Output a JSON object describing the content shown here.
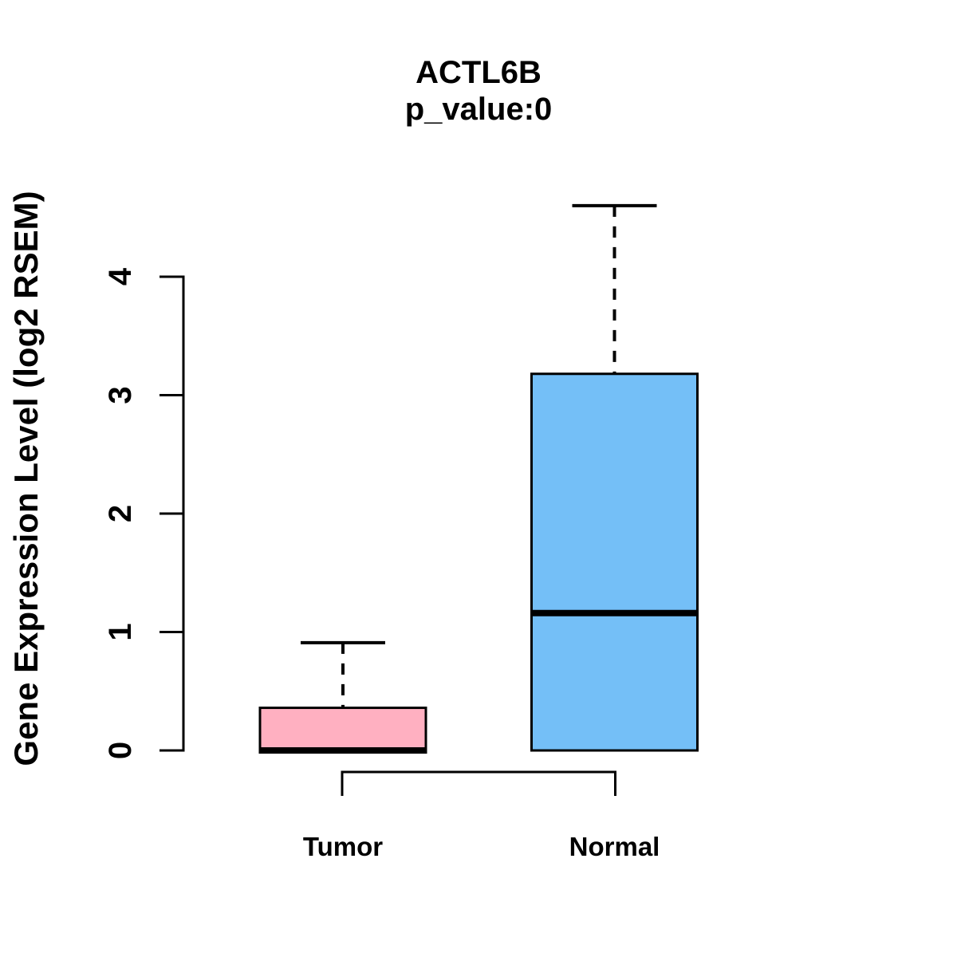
{
  "page": {
    "background_color": "#FFFFFF",
    "text_color": "#000000"
  },
  "chart_data": {
    "type": "boxplot",
    "title": "ACTL6B",
    "subtitle": "p_value:0",
    "ylabel": "Gene Expression Level (log2 RSEM)",
    "xlabel": "",
    "categories": [
      "Tumor",
      "Normal"
    ],
    "yticks": [
      0,
      1,
      2,
      3,
      4
    ],
    "ylim": [
      -0.25,
      4.75
    ],
    "grid": false,
    "legend": "none",
    "axis_color": "#000000",
    "series": [
      {
        "name": "Tumor",
        "fill_color": "#FFB0C1",
        "whisker_low": 0,
        "q1": 0,
        "median": 0,
        "q3": 0.36,
        "whisker_high": 0.91
      },
      {
        "name": "Normal",
        "fill_color": "#74BFF7",
        "whisker_low": 0,
        "q1": 0,
        "median": 1.16,
        "q3": 3.18,
        "whisker_high": 4.6
      }
    ],
    "comparison_bracket": {
      "connects": [
        "Tumor",
        "Normal"
      ]
    }
  }
}
